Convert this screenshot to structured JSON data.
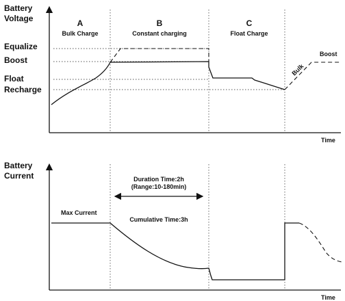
{
  "voltage_chart": {
    "y_title_line1": "Battery",
    "y_title_line2": "Voltage",
    "x_title": "Time",
    "levels": {
      "equalize": "Equalize",
      "boost": "Boost",
      "float": "Float",
      "recharge": "Recharge"
    },
    "phases": [
      {
        "letter": "A",
        "name": "Bulk Charge"
      },
      {
        "letter": "B",
        "name": "Constant charging"
      },
      {
        "letter": "C",
        "name": "Float Charge"
      }
    ],
    "after_labels": {
      "bulk": "Bulk",
      "boost": "Boost"
    }
  },
  "current_chart": {
    "y_title_line1": "Battery",
    "y_title_line2": "Current",
    "x_title": "Time",
    "max_current": "Max Current",
    "duration": "Duration Time:2h",
    "range": "(Range:10-180min)",
    "cumulative": "Cumulative Time:3h"
  },
  "colors": {
    "line": "#111111",
    "guide": "#555555",
    "background": "#ffffff"
  }
}
